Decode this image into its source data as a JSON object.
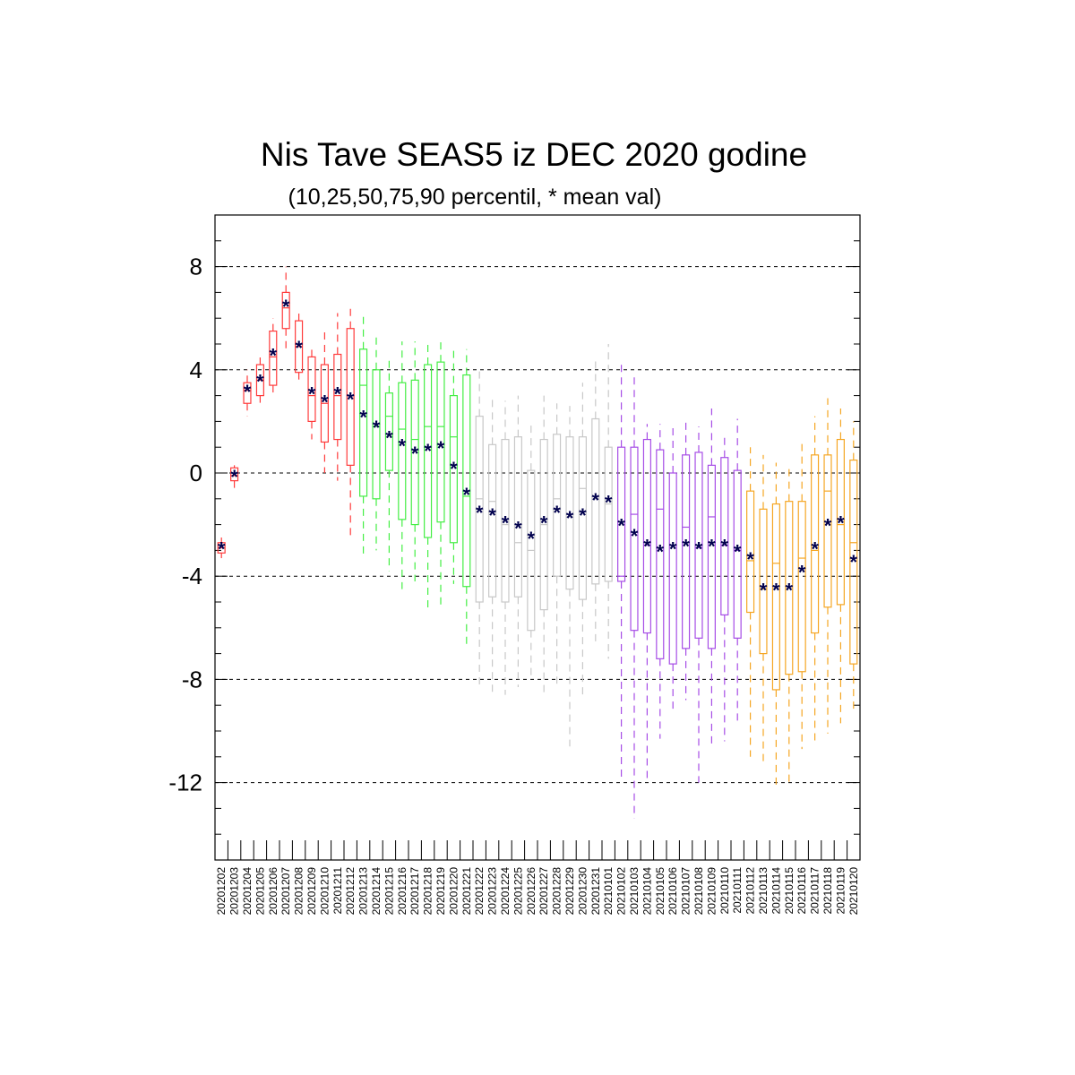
{
  "chart_data": {
    "type": "boxplot",
    "title": "Nis Tave SEAS5 iz DEC 2020 godine",
    "subtitle": "(10,25,50,75,90 percentil, * mean val)",
    "xlabel": "",
    "ylabel": "",
    "ylim": [
      -15,
      10
    ],
    "yticks": [
      -12,
      -8,
      -4,
      0,
      4,
      8
    ],
    "ytick_labels": [
      "-12",
      "-8",
      "-4",
      "0",
      "4",
      "8"
    ],
    "grid": "dashed horizontal lines at major ticks",
    "legend": "none",
    "mean_marker": "*",
    "mean_color": "#00004d",
    "groups": [
      {
        "color": "#ff3b3b",
        "from": 0,
        "to": 10
      },
      {
        "color": "#44ee44",
        "from": 11,
        "to": 19
      },
      {
        "color": "#c8c8c8",
        "from": 20,
        "to": 30
      },
      {
        "color": "#a64de6",
        "from": 31,
        "to": 40
      },
      {
        "color": "#f5a623",
        "from": 41,
        "to": 50
      }
    ],
    "categories": [
      "20201202",
      "20201203",
      "20201204",
      "20201205",
      "20201206",
      "20201207",
      "20201208",
      "20201209",
      "20201210",
      "20201211",
      "20201212",
      "20201213",
      "20201214",
      "20201215",
      "20201216",
      "20201217",
      "20201218",
      "20201219",
      "20201220",
      "20201221",
      "20201222",
      "20201223",
      "20201224",
      "20201225",
      "20201226",
      "20201227",
      "20201228",
      "20201229",
      "20201230",
      "20201231",
      "20210101",
      "20210102",
      "20210103",
      "20210104",
      "20210105",
      "20210106",
      "20210107",
      "20210108",
      "20210109",
      "20210110",
      "20210111",
      "20210112",
      "20210113",
      "20210114",
      "20210115",
      "20210116",
      "20210117",
      "20210118",
      "20210119",
      "20210120"
    ],
    "p10": [
      -3.3,
      -0.6,
      2.2,
      2.7,
      3.0,
      4.8,
      3.5,
      1.3,
      0.0,
      -0.3,
      -2.6,
      -3.2,
      -3.0,
      -3.8,
      -4.5,
      -4.2,
      -5.4,
      -5.3,
      -4.3,
      -6.8,
      -8.4,
      -8.5,
      -8.6,
      -8.3,
      -8.0,
      -8.5,
      -8.2,
      -10.6,
      -8.6,
      -6.6,
      -7.2,
      -11.8,
      -13.4,
      -12.0,
      -10.3,
      -9.3,
      -8.8,
      -12.0,
      -10.6,
      -10.4,
      -9.6,
      -11.0,
      -11.2,
      -12.2,
      -12.1,
      -10.7,
      -10.5,
      -10.1,
      -9.7,
      -9.3
    ],
    "p25": [
      -3.1,
      -0.3,
      2.7,
      3.0,
      3.4,
      5.6,
      3.9,
      2.0,
      1.2,
      1.3,
      0.3,
      -0.9,
      -1.0,
      0.1,
      -1.8,
      -2.0,
      -2.5,
      -1.9,
      -2.7,
      -4.4,
      -5.0,
      -4.8,
      -5.0,
      -4.8,
      -6.1,
      -5.3,
      -4.0,
      -4.5,
      -4.9,
      -4.3,
      -4.2,
      -4.2,
      -6.1,
      -6.2,
      -7.2,
      -7.4,
      -6.8,
      -6.4,
      -6.8,
      -5.5,
      -6.4,
      -5.4,
      -7.0,
      -8.4,
      -7.8,
      -7.7,
      -6.2,
      -5.2,
      -5.1,
      -7.4
    ],
    "p50": [
      -2.9,
      -0.1,
      3.2,
      3.6,
      4.5,
      6.4,
      4.9,
      3.0,
      2.7,
      3.0,
      3.0,
      3.4,
      1.8,
      2.2,
      1.7,
      1.3,
      1.8,
      1.8,
      1.4,
      -0.9,
      -1.0,
      -1.1,
      -2.0,
      -2.7,
      -3.0,
      -2.0,
      -1.0,
      -1.7,
      -0.6,
      -1.0,
      -1.2,
      -4.0,
      -1.6,
      -2.8,
      -1.4,
      -2.8,
      -2.1,
      -2.9,
      -1.7,
      -2.8,
      -3.0,
      -3.4,
      -4.5,
      -3.5,
      -4.4,
      -3.3,
      -3.0,
      -0.7,
      -2.0,
      -2.7
    ],
    "p75": [
      -2.7,
      0.2,
      3.5,
      4.2,
      5.5,
      7.0,
      5.9,
      4.5,
      4.2,
      4.6,
      5.6,
      4.8,
      4.0,
      3.1,
      3.5,
      3.6,
      4.2,
      4.3,
      3.0,
      3.8,
      2.2,
      1.1,
      1.3,
      1.4,
      0.1,
      1.3,
      1.5,
      1.4,
      1.4,
      2.1,
      1.0,
      1.0,
      1.0,
      1.3,
      0.9,
      0.0,
      0.7,
      0.8,
      0.3,
      0.6,
      0.1,
      -0.7,
      -1.4,
      -1.2,
      -1.1,
      -1.1,
      0.7,
      0.7,
      1.3,
      0.5
    ],
    "p90": [
      -2.5,
      0.3,
      4.0,
      4.5,
      6.0,
      8.0,
      6.3,
      4.9,
      5.5,
      6.2,
      6.4,
      6.1,
      5.4,
      4.5,
      5.1,
      5.1,
      5.1,
      5.2,
      4.9,
      4.8,
      4.0,
      3.0,
      2.8,
      3.0,
      1.9,
      3.0,
      2.7,
      2.6,
      3.5,
      4.4,
      5.0,
      4.2,
      3.9,
      1.9,
      1.9,
      1.8,
      2.1,
      1.8,
      2.5,
      1.4,
      2.1,
      1.0,
      0.7,
      0.4,
      0.3,
      1.3,
      2.2,
      2.9,
      2.5,
      2.0
    ],
    "mean": [
      -2.9,
      -0.1,
      3.2,
      3.6,
      4.6,
      6.5,
      4.9,
      3.1,
      2.8,
      3.1,
      2.9,
      2.2,
      1.8,
      1.4,
      1.1,
      0.8,
      0.9,
      1.0,
      0.2,
      -0.8,
      -1.5,
      -1.6,
      -1.9,
      -2.1,
      -2.5,
      -1.9,
      -1.5,
      -1.7,
      -1.6,
      -1.0,
      -1.1,
      -2.0,
      -2.4,
      -2.8,
      -3.0,
      -2.9,
      -2.8,
      -2.9,
      -2.8,
      -2.8,
      -3.0,
      -3.3,
      -4.5,
      -4.5,
      -4.5,
      -3.8,
      -2.9,
      -2.0,
      -1.9,
      -3.4
    ]
  }
}
